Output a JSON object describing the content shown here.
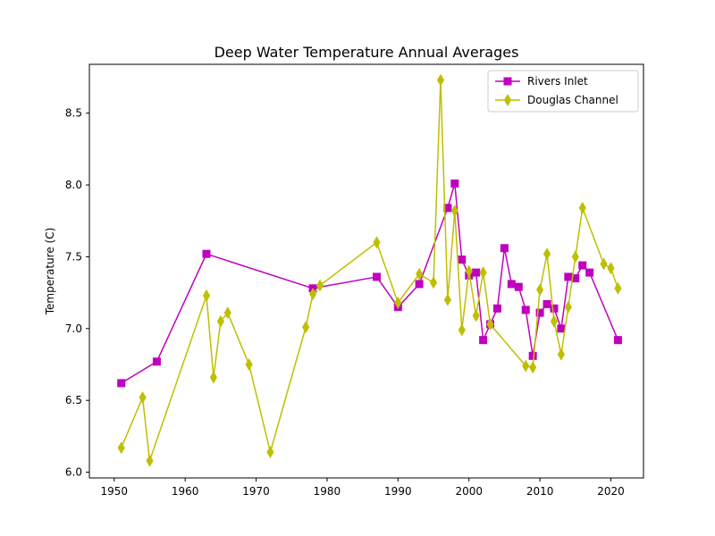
{
  "chart_data": {
    "type": "line",
    "title": "Deep Water Temperature Annual Averages",
    "xlabel": "",
    "ylabel": "Temperature (C)",
    "xlim": [
      1946.5,
      2024.6
    ],
    "ylim": [
      5.96,
      8.84
    ],
    "xticks": [
      1950,
      1960,
      1970,
      1980,
      1990,
      2000,
      2010,
      2020
    ],
    "yticks": [
      6.0,
      6.5,
      7.0,
      7.5,
      8.0,
      8.5
    ],
    "ytick_labels": [
      "6.0",
      "6.5",
      "7.0",
      "7.5",
      "8.0",
      "8.5"
    ],
    "grid": false,
    "legend_position": "top-right",
    "series": [
      {
        "name": "Rivers Inlet",
        "color": "#bf00bf",
        "marker": "square",
        "x": [
          1951,
          1956,
          1963,
          1978,
          1987,
          1990,
          1993,
          1997,
          1998,
          1999,
          2000,
          2001,
          2002,
          2003,
          2004,
          2005,
          2006,
          2007,
          2008,
          2009,
          2010,
          2011,
          2012,
          2013,
          2014,
          2015,
          2016,
          2017,
          2021
        ],
        "y": [
          6.62,
          6.77,
          7.52,
          7.28,
          7.36,
          7.15,
          7.31,
          7.84,
          8.01,
          7.48,
          7.37,
          7.39,
          6.92,
          7.03,
          7.14,
          7.56,
          7.31,
          7.29,
          7.13,
          6.81,
          7.11,
          7.17,
          7.14,
          7.0,
          7.36,
          7.35,
          7.44,
          7.39,
          6.92
        ]
      },
      {
        "name": "Douglas Channel",
        "color": "#bfbf00",
        "marker": "thin_diamond",
        "x": [
          1951,
          1954,
          1955,
          1963,
          1964,
          1965,
          1966,
          1969,
          1972,
          1977,
          1978,
          1979,
          1987,
          1990,
          1993,
          1995,
          1996,
          1997,
          1998,
          1999,
          2000,
          2001,
          2002,
          2003,
          2008,
          2009,
          2010,
          2011,
          2012,
          2013,
          2014,
          2015,
          2016,
          2019,
          2020,
          2021
        ],
        "y": [
          6.17,
          6.52,
          6.08,
          7.23,
          6.66,
          7.05,
          7.11,
          6.75,
          6.14,
          7.01,
          7.24,
          7.3,
          7.6,
          7.18,
          7.38,
          7.32,
          8.73,
          7.2,
          7.82,
          6.99,
          7.4,
          7.09,
          7.39,
          7.03,
          6.74,
          6.73,
          7.27,
          7.52,
          7.05,
          6.82,
          7.15,
          7.5,
          7.84,
          7.45,
          7.42,
          7.28
        ]
      }
    ]
  }
}
